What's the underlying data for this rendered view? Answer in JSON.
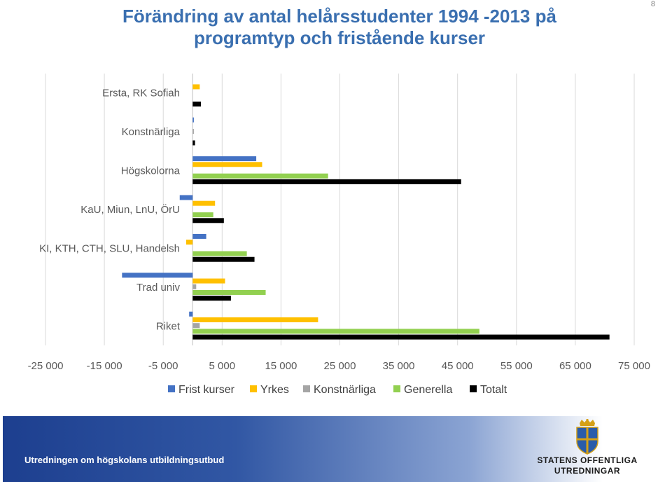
{
  "slide": {
    "title": "Förändring av antal helårsstudenter 1994 -2013 på programtyp och fristående kurser",
    "page_number": "8"
  },
  "footer": {
    "text": "Utredningen om högskolans utbildningsutbud",
    "logo_line1": "STATENS OFFENTLIGA",
    "logo_line2": "UTREDNINGAR",
    "logo_icon": "crown-shield-icon"
  },
  "chart_data": {
    "type": "bar",
    "orientation": "horizontal",
    "categories": [
      "Ersta, RK Sofiah",
      "Konstnärliga",
      "Högskolorna",
      "KaU, Miun, LnU, ÖrU",
      "KI, KTH, CTH, SLU, Handelsh",
      "Trad univ",
      "Riket"
    ],
    "series": [
      {
        "name": "Frist kurser",
        "color": "#4472c4",
        "values": [
          0,
          200,
          10800,
          -2200,
          2300,
          -12000,
          -600
        ]
      },
      {
        "name": "Yrkes",
        "color": "#ffc000",
        "values": [
          1200,
          0,
          11800,
          3800,
          -1100,
          5500,
          21300
        ]
      },
      {
        "name": "Konstnärliga",
        "color": "#a5a5a5",
        "values": [
          0,
          200,
          0,
          0,
          0,
          600,
          1200
        ]
      },
      {
        "name": "Generella",
        "color": "#92d050",
        "values": [
          0,
          0,
          23000,
          3500,
          9200,
          12400,
          48700
        ]
      },
      {
        "name": "Totalt",
        "color": "#000000",
        "values": [
          1400,
          400,
          45600,
          5300,
          10500,
          6500,
          70800
        ]
      }
    ],
    "xlim": [
      -25000,
      75000
    ],
    "xticks": [
      -25000,
      -15000,
      -5000,
      5000,
      15000,
      25000,
      35000,
      45000,
      55000,
      65000,
      75000
    ],
    "xtick_labels": [
      "-25 000",
      "-15 000",
      "-5 000",
      "5 000",
      "15 000",
      "25 000",
      "35 000",
      "45 000",
      "55 000",
      "65 000",
      "75 000"
    ],
    "grid": true,
    "legend_position": "bottom"
  }
}
